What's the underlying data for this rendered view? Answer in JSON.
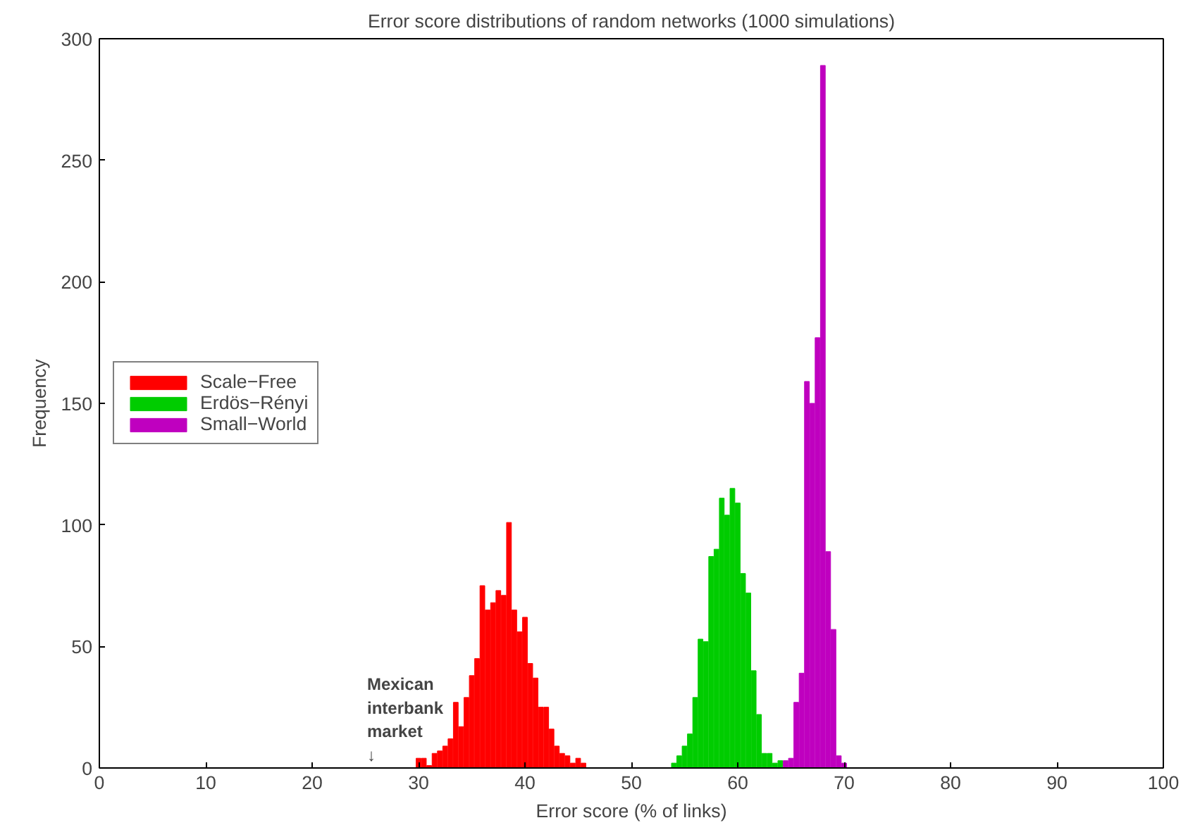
{
  "chart_data": {
    "type": "bar",
    "title": "Error score distributions of random networks (1000 simulations)",
    "xlabel": "Error score (% of links)",
    "ylabel": "Frequency",
    "xlim": [
      0,
      100
    ],
    "ylim": [
      0,
      300
    ],
    "xticks": [
      0,
      10,
      20,
      30,
      40,
      50,
      60,
      70,
      80,
      90,
      100
    ],
    "yticks": [
      0,
      50,
      100,
      150,
      200,
      250,
      300
    ],
    "grid": false,
    "legend": "left",
    "series": [
      {
        "name": "Scale−Free",
        "color": "#ff0000",
        "x": [
          30,
          30.5,
          31,
          31.5,
          32,
          32.5,
          33,
          33.5,
          34,
          34.5,
          35,
          35.5,
          36,
          36.5,
          37,
          37.5,
          38,
          38.5,
          39,
          39.5,
          40,
          40.5,
          41,
          41.5,
          42,
          42.5,
          43,
          43.5,
          44,
          44.5,
          45,
          45.5
        ],
        "values": [
          4,
          4,
          1,
          6,
          7,
          9,
          12,
          27,
          17,
          29,
          38,
          45,
          75,
          65,
          68,
          73,
          71,
          101,
          65,
          56,
          62,
          43,
          37,
          25,
          25,
          16,
          9,
          6,
          5,
          2,
          4,
          2
        ]
      },
      {
        "name": "Erdös−Rényi",
        "color": "#00cc00",
        "x": [
          54,
          54.5,
          55,
          55.5,
          56,
          56.5,
          57,
          57.5,
          58,
          58.5,
          59,
          59.5,
          60,
          60.5,
          61,
          61.5,
          62,
          62.5,
          63,
          63.5,
          64
        ],
        "values": [
          2,
          5,
          9,
          14,
          29,
          53,
          52,
          87,
          90,
          111,
          104,
          115,
          109,
          80,
          72,
          40,
          22,
          6,
          6,
          2,
          3
        ]
      },
      {
        "name": "Small−World",
        "color": "#bf00bf",
        "x": [
          64.5,
          65,
          65.5,
          66,
          66.5,
          67,
          67.5,
          68,
          68.5,
          69,
          69.5,
          70
        ],
        "values": [
          3,
          4,
          27,
          39,
          159,
          150,
          177,
          289,
          89,
          57,
          5,
          2
        ]
      }
    ],
    "annotations": [
      "Mexican\ninterbank\nmarket\n↓"
    ]
  }
}
